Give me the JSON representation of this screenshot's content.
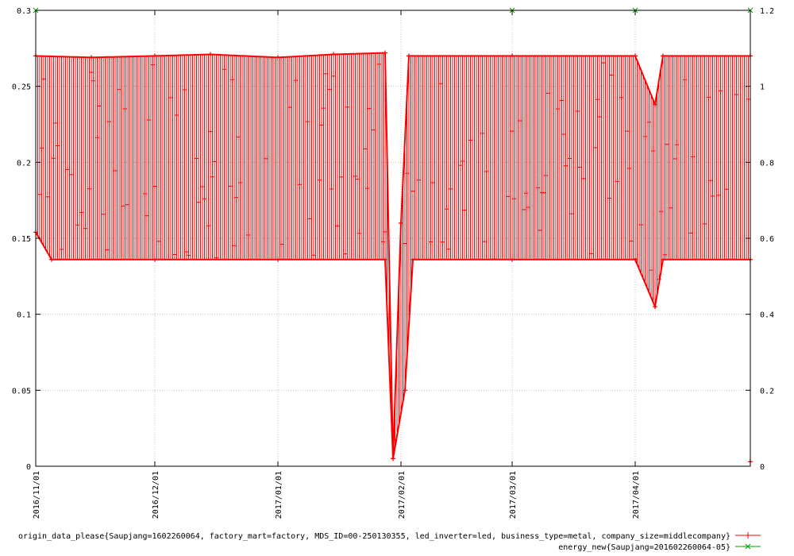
{
  "chart_data": {
    "type": "line",
    "title": "",
    "xlabel": "",
    "ylabel": "",
    "x_axis": {
      "type": "date",
      "range": [
        "2016-11-01",
        "2017-04-30"
      ],
      "ticks": [
        "2016/11/01",
        "2016/12/01",
        "2017/01/01",
        "2017/02/01",
        "2017/03/01",
        "2017/04/01"
      ]
    },
    "y_left": {
      "range": [
        0,
        0.3
      ],
      "ticks": [
        0,
        0.05,
        0.1,
        0.15,
        0.2,
        0.25,
        0.3
      ],
      "tick_labels": [
        "0",
        "0.05",
        "0.1",
        "0.15",
        "0.2",
        "0.25",
        "0.3"
      ]
    },
    "y_right": {
      "range": [
        0,
        1.2
      ],
      "ticks": [
        0,
        0.2,
        0.4,
        0.6,
        0.8,
        1,
        1.2
      ],
      "tick_labels": [
        "0",
        "0.2",
        "0.4",
        "0.6",
        "0.8",
        "1",
        "1.2"
      ]
    },
    "grid": true,
    "legend_position": "bottom-right",
    "series": [
      {
        "name": "origin_data_please{Saupjang=1602260064, factory_mart=factory, MDS_ID=00-250130355, led_inverter=led, business_type=metal, company_size=middlecompany}",
        "color": "#ff0000",
        "marker": "plus",
        "axis": "left",
        "upper_envelope": [
          [
            "2016-11-01",
            0.27
          ],
          [
            "2016-11-15",
            0.269
          ],
          [
            "2016-12-01",
            0.27
          ],
          [
            "2016-12-15",
            0.271
          ],
          [
            "2017-01-01",
            0.269
          ],
          [
            "2017-01-15",
            0.271
          ],
          [
            "2017-01-28",
            0.272
          ],
          [
            "2017-01-30",
            0.005
          ],
          [
            "2017-02-01",
            0.16
          ],
          [
            "2017-02-03",
            0.27
          ],
          [
            "2017-03-01",
            0.27
          ],
          [
            "2017-04-01",
            0.27
          ],
          [
            "2017-04-06",
            0.238
          ],
          [
            "2017-04-08",
            0.27
          ],
          [
            "2017-04-30",
            0.27
          ]
        ],
        "lower_envelope": [
          [
            "2016-11-01",
            0.154
          ],
          [
            "2016-11-05",
            0.136
          ],
          [
            "2016-12-01",
            0.136
          ],
          [
            "2017-01-01",
            0.136
          ],
          [
            "2017-01-28",
            0.136
          ],
          [
            "2017-01-30",
            0.005
          ],
          [
            "2017-02-02",
            0.05
          ],
          [
            "2017-02-04",
            0.136
          ],
          [
            "2017-03-01",
            0.136
          ],
          [
            "2017-04-01",
            0.136
          ],
          [
            "2017-04-06",
            0.105
          ],
          [
            "2017-04-08",
            0.136
          ],
          [
            "2017-04-30",
            0.136
          ],
          [
            "2017-04-30",
            0.003
          ]
        ]
      },
      {
        "name": "energy_new{Saupjang=201602260064-05}",
        "color": "#00a000",
        "marker": "x",
        "axis": "right",
        "points": [
          [
            "2016-11-01",
            1.2
          ],
          [
            "2017-03-01",
            1.2
          ],
          [
            "2017-04-01",
            1.2
          ],
          [
            "2017-04-30",
            1.2
          ]
        ]
      }
    ]
  }
}
